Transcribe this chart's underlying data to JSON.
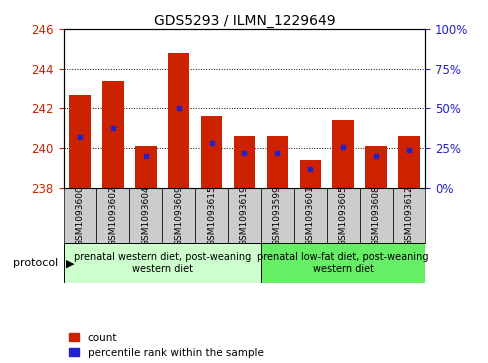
{
  "title": "GDS5293 / ILMN_1229649",
  "samples": [
    "GSM1093600",
    "GSM1093602",
    "GSM1093604",
    "GSM1093609",
    "GSM1093615",
    "GSM1093619",
    "GSM1093599",
    "GSM1093601",
    "GSM1093605",
    "GSM1093608",
    "GSM1093612"
  ],
  "bar_values": [
    242.7,
    243.4,
    240.1,
    244.8,
    241.6,
    240.6,
    240.6,
    239.4,
    241.4,
    240.1,
    240.6
  ],
  "baseline": 238,
  "percentile_values": [
    32,
    38,
    20,
    50,
    28,
    22,
    22,
    12,
    26,
    20,
    24
  ],
  "ylim": [
    238,
    246
  ],
  "yticks_left": [
    238,
    240,
    242,
    244,
    246
  ],
  "yticks_right": [
    0,
    25,
    50,
    75,
    100
  ],
  "bar_color": "#cc2200",
  "dot_color": "#2222cc",
  "bar_width": 0.65,
  "group1_label": "prenatal western diet, post-weaning\nwestern diet",
  "group2_label": "prenatal low-fat diet, post-weaning\nwestern diet",
  "group1_count": 6,
  "group2_count": 5,
  "protocol_label": "protocol",
  "legend_count": "count",
  "legend_percentile": "percentile rank within the sample",
  "group1_color": "#ccffcc",
  "group2_color": "#66ee66",
  "tick_color_left": "#cc2200",
  "tick_color_right": "#2222cc",
  "label_bg_color": "#cccccc"
}
